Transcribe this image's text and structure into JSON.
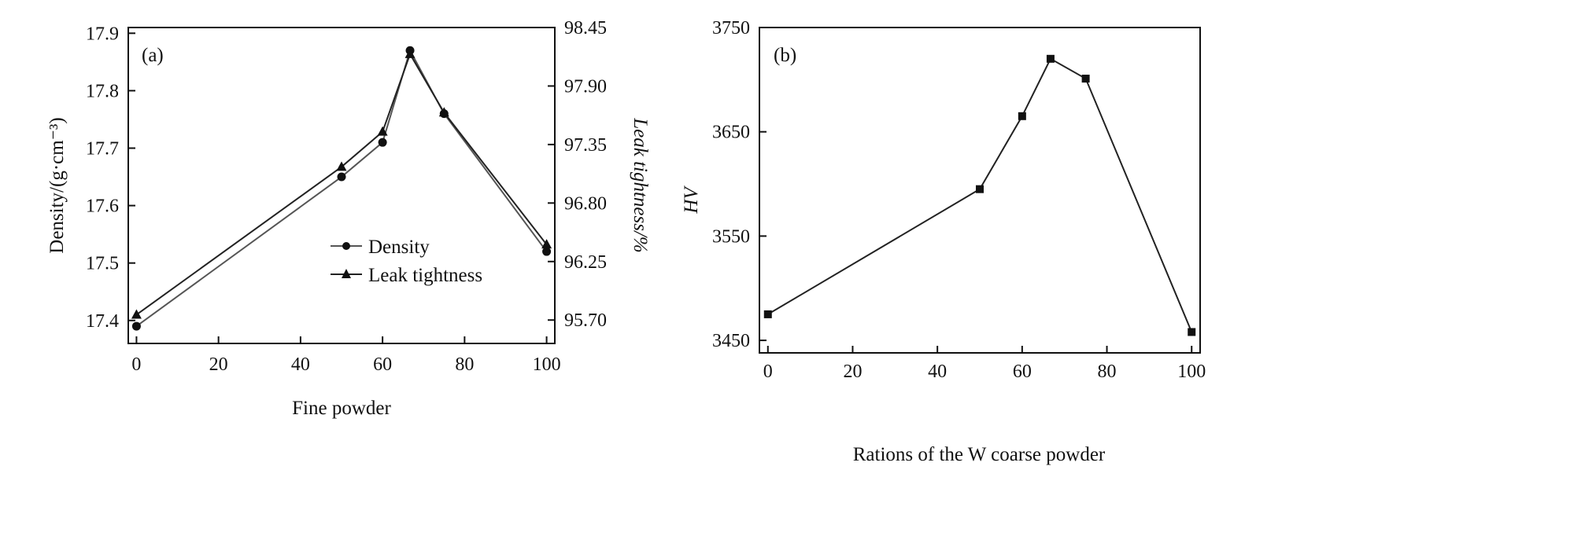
{
  "colors": {
    "line_density": "#555555",
    "line_leak": "#222222",
    "marker": "#111111",
    "axis": "#111111",
    "background": "#ffffff"
  },
  "chart_data": [
    {
      "type": "line",
      "panel_label": "(a)",
      "xlabel": "Fine powder",
      "ylabel": "Density/(g·cm⁻³)",
      "y2label": "Leak tightness/%",
      "xlim": [
        -2,
        102
      ],
      "ylim": [
        17.36,
        17.91
      ],
      "y2lim": [
        95.48,
        98.45
      ],
      "x_ticks": [
        0,
        20,
        40,
        60,
        80,
        100
      ],
      "x_tick_labels": [
        "0",
        "20",
        "40",
        "60",
        "80",
        "100"
      ],
      "y_ticks": [
        17.4,
        17.5,
        17.6,
        17.7,
        17.8,
        17.9
      ],
      "y_tick_labels": [
        "17.4",
        "17.5",
        "17.6",
        "17.7",
        "17.8",
        "17.9"
      ],
      "y2_ticks": [
        95.7,
        96.25,
        96.8,
        97.35,
        97.9,
        98.45
      ],
      "y2_tick_labels": [
        "95.70",
        "96.25",
        "96.80",
        "97.35",
        "97.90",
        "98.45"
      ],
      "grid": false,
      "legend_position": "center",
      "series": [
        {
          "name": "Density",
          "axis": "left",
          "marker": "circle",
          "x": [
            0,
            50,
            60,
            66.7,
            75,
            100
          ],
          "y": [
            17.39,
            17.65,
            17.71,
            17.87,
            17.76,
            17.52
          ]
        },
        {
          "name": "Leak tightness",
          "axis": "right",
          "marker": "triangle",
          "x": [
            0,
            50,
            60,
            66.7,
            75,
            100
          ],
          "y": [
            95.75,
            97.14,
            97.47,
            98.2,
            97.65,
            96.41
          ]
        }
      ]
    },
    {
      "type": "line",
      "panel_label": "(b)",
      "xlabel": "Rations of the W coarse powder",
      "ylabel": "HV",
      "xlim": [
        -2,
        102
      ],
      "ylim": [
        3438,
        3750
      ],
      "x_ticks": [
        0,
        20,
        40,
        60,
        80,
        100
      ],
      "x_tick_labels": [
        "0",
        "20",
        "40",
        "60",
        "80",
        "100"
      ],
      "y_ticks": [
        3450,
        3550,
        3650,
        3750
      ],
      "y_tick_labels": [
        "3450",
        "3550",
        "3650",
        "3750"
      ],
      "grid": false,
      "series": [
        {
          "marker": "square",
          "x": [
            0,
            50,
            60,
            66.7,
            75,
            100
          ],
          "y": [
            3475,
            3595,
            3665,
            3720,
            3701,
            3458
          ]
        }
      ]
    }
  ]
}
